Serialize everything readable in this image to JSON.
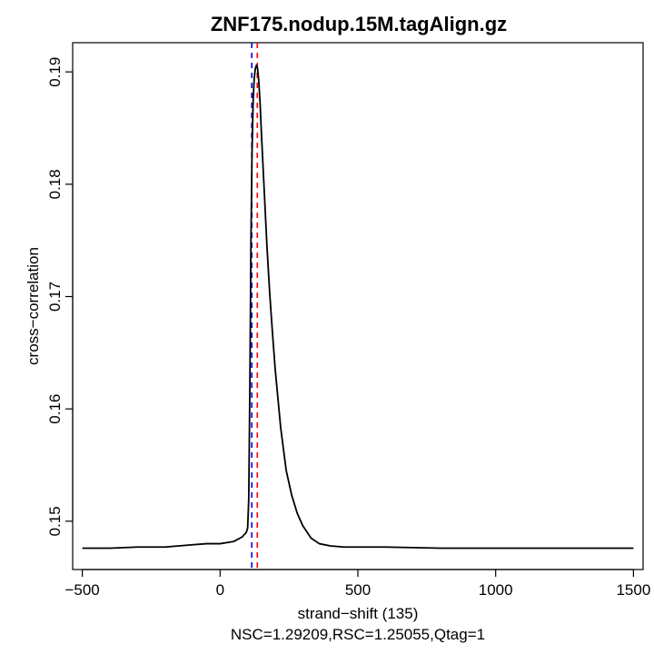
{
  "chart_data": {
    "type": "line",
    "title": "ZNF175.nodup.15M.tagAlign.gz",
    "xlabel": "strand−shift (135)",
    "ylabel": "cross−correlation",
    "subtitle": "NSC=1.29209,RSC=1.25055,Qtag=1",
    "xlim": [
      -535,
      1535
    ],
    "ylim": [
      0.1457,
      0.1926
    ],
    "x_ticks": [
      -500,
      0,
      500,
      1000,
      1500
    ],
    "x_tick_labels": [
      "−500",
      "0",
      "500",
      "1000",
      "1500"
    ],
    "y_ticks": [
      0.15,
      0.16,
      0.17,
      0.18,
      0.19
    ],
    "y_tick_labels": [
      "0.15",
      "0.16",
      "0.17",
      "0.18",
      "0.19"
    ],
    "vlines": [
      {
        "x": 115,
        "color": "#0000ff",
        "style": "dashed"
      },
      {
        "x": 135,
        "color": "#ff0000",
        "style": "dashed"
      }
    ],
    "series": [
      {
        "color": "#000000",
        "x": [
          -500,
          -400,
          -300,
          -200,
          -100,
          -50,
          0,
          50,
          80,
          95,
          100,
          104,
          108,
          112,
          116,
          120,
          124,
          128,
          132,
          136,
          140,
          145,
          150,
          160,
          170,
          180,
          190,
          200,
          220,
          240,
          260,
          280,
          300,
          330,
          360,
          400,
          450,
          500,
          600,
          800,
          1000,
          1200,
          1300,
          1400,
          1500
        ],
        "y": [
          0.1476,
          0.1476,
          0.1477,
          0.1477,
          0.1479,
          0.148,
          0.148,
          0.1482,
          0.1486,
          0.149,
          0.1494,
          0.152,
          0.162,
          0.175,
          0.183,
          0.1875,
          0.1895,
          0.1903,
          0.1906,
          0.1903,
          0.1893,
          0.1873,
          0.1845,
          0.1795,
          0.1745,
          0.1703,
          0.1668,
          0.1635,
          0.1583,
          0.1545,
          0.1523,
          0.1507,
          0.1496,
          0.1485,
          0.148,
          0.1478,
          0.1477,
          0.1477,
          0.1477,
          0.1476,
          0.1476,
          0.1476,
          0.1476,
          0.1476,
          0.1476
        ]
      }
    ]
  }
}
